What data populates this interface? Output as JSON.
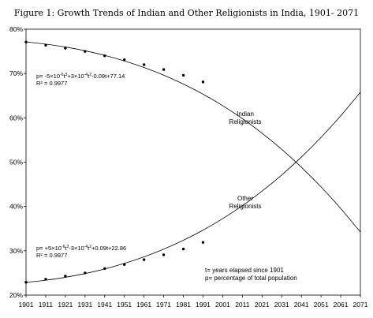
{
  "chart_data": {
    "type": "line",
    "title": "Figure 1: Growth Trends of Indian and Other Religionists in India, 1901- 2071",
    "xlabel": "",
    "ylabel": "",
    "x": [
      1901,
      1911,
      1921,
      1931,
      1941,
      1951,
      1961,
      1971,
      1981,
      1991,
      2001,
      2011,
      2021,
      2031,
      2041,
      2051,
      2061,
      2071
    ],
    "xlim": [
      1901,
      2071
    ],
    "ylim": [
      20,
      80
    ],
    "y_ticks": [
      "20%",
      "30%",
      "40%",
      "50%",
      "60%",
      "70%",
      "80%"
    ],
    "x_ticks": [
      "1901",
      "1911",
      "1921",
      "1931",
      "1941",
      "1951",
      "1961",
      "1971",
      "1981",
      "1991",
      "2001",
      "2011",
      "2021",
      "2031",
      "2041",
      "2051",
      "2061",
      "2071"
    ],
    "grid": false,
    "series": [
      {
        "name": "Indian Religionists",
        "label_lines": [
          "Indian",
          "Religionists"
        ],
        "observed_points": [
          [
            1901,
            77.1
          ],
          [
            1911,
            76.4
          ],
          [
            1921,
            75.7
          ],
          [
            1931,
            75.0
          ],
          [
            1941,
            74.0
          ],
          [
            1951,
            73.1
          ],
          [
            1961,
            72.0
          ],
          [
            1971,
            70.9
          ],
          [
            1981,
            69.6
          ],
          [
            1991,
            68.1
          ]
        ],
        "fit_values": [
          77.14,
          76.64,
          75.98,
          75.14,
          74.1,
          72.84,
          71.36,
          69.62,
          67.62,
          65.34,
          62.74,
          59.82,
          56.54,
          52.9,
          48.86,
          44.42,
          39.54,
          34.22
        ],
        "equation": {
          "prefix": "p= -5×10",
          "e1": "-6",
          "mid1": "t",
          "p1": "3",
          "mid2": "+3×10",
          "e2": "-4",
          "mid3": "t",
          "p2": "2",
          "tail": "-0.09t+77.14"
        },
        "r2": "R² = 0.9977"
      },
      {
        "name": "Other Religionists",
        "label_lines": [
          "Other",
          "Religionists"
        ],
        "observed_points": [
          [
            1901,
            22.9
          ],
          [
            1911,
            23.6
          ],
          [
            1921,
            24.3
          ],
          [
            1931,
            25.0
          ],
          [
            1941,
            26.0
          ],
          [
            1951,
            26.9
          ],
          [
            1961,
            28.0
          ],
          [
            1971,
            29.1
          ],
          [
            1981,
            30.4
          ],
          [
            1991,
            31.9
          ]
        ],
        "fit_values": [
          22.86,
          23.36,
          24.02,
          24.86,
          25.9,
          27.16,
          28.64,
          30.38,
          32.38,
          34.66,
          37.26,
          40.18,
          43.46,
          47.1,
          51.14,
          55.58,
          60.46,
          65.78
        ],
        "equation": {
          "prefix": "p= +5×10",
          "e1": "-6",
          "mid1": "t",
          "p1": "3",
          "mid2": "-3×10",
          "e2": "-4",
          "mid3": "t",
          "p2": "2",
          "tail": "+0.09t+22.86"
        },
        "r2": "R² = 0.9977"
      }
    ],
    "notes": [
      "t= years elapsed since 1901",
      "p= percentage of total population"
    ]
  }
}
